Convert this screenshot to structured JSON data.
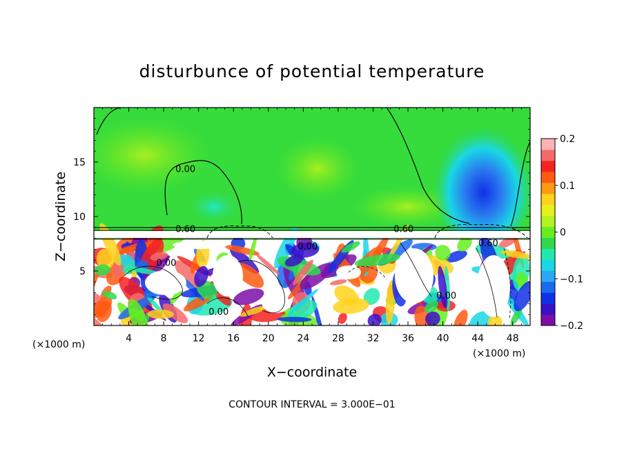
{
  "chart_data": {
    "type": "heatmap",
    "title": "disturbunce of potential temperature",
    "xlabel": "X−coordinate",
    "ylabel": "Z−coordinate",
    "x_unit": "(×1000 m)",
    "x_unit_right": "(×1000 m)",
    "xlim": [
      0,
      50
    ],
    "ylim": [
      0,
      20
    ],
    "xticks": [
      4,
      8,
      12,
      16,
      20,
      24,
      28,
      32,
      36,
      40,
      44,
      48
    ],
    "yticks": [
      5,
      10,
      15
    ],
    "colorbar": {
      "range": [
        -0.2,
        0.2
      ],
      "ticks": [
        "0.2",
        "0.1",
        "0",
        "−0.1",
        "−0.2"
      ],
      "colors": [
        "#7d0ea8",
        "#3c10c8",
        "#1030e6",
        "#1a6aef",
        "#2aa8f5",
        "#19d7e6",
        "#22e8b0",
        "#30d94a",
        "#66ee20",
        "#b2f21f",
        "#e6f01a",
        "#ffd21c",
        "#ff9a12",
        "#ff5a12",
        "#f52222",
        "#f56a6a",
        "#fab4b4"
      ]
    },
    "contour_labels": [
      {
        "text": "0.00",
        "x": 10.5,
        "z": 14.4
      },
      {
        "text": "0.60",
        "x": 10.5,
        "z": 8.9
      },
      {
        "text": "0.60",
        "x": 35.5,
        "z": 8.9
      },
      {
        "text": "0.00",
        "x": 24.5,
        "z": 7.3
      },
      {
        "text": "0.00",
        "x": 8.3,
        "z": 5.8
      },
      {
        "text": "0.00",
        "x": 14.3,
        "z": 1.3
      },
      {
        "text": "0.00",
        "x": 40.4,
        "z": 2.8
      },
      {
        "text": "0.60",
        "x": 45.2,
        "z": 7.6
      }
    ],
    "contour_interval": "CONTOUR INTERVAL = 3.000E−01"
  }
}
